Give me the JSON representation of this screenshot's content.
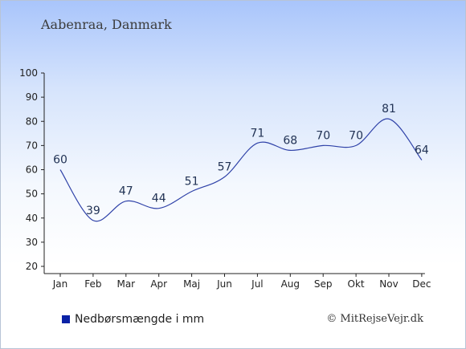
{
  "header": {
    "title": "Aabenraa, Danmark"
  },
  "legend": {
    "label": "Nedbørsmængde i mm",
    "color": "#0a22a6"
  },
  "credit": {
    "symbol": "©",
    "text": "MitRejseVejr.dk"
  },
  "colors": {
    "line": "#2f42a8",
    "axis": "#222222"
  },
  "chart_data": {
    "type": "line",
    "categories": [
      "Jan",
      "Feb",
      "Mar",
      "Apr",
      "Maj",
      "Jun",
      "Jul",
      "Aug",
      "Sep",
      "Okt",
      "Nov",
      "Dec"
    ],
    "series": [
      {
        "values": [
          60,
          39,
          47,
          44,
          51,
          57,
          71,
          68,
          70,
          70,
          81,
          64
        ]
      }
    ],
    "yticks": [
      20,
      30,
      40,
      50,
      60,
      70,
      80,
      90,
      100
    ],
    "ylim": [
      17,
      100
    ],
    "grid": false,
    "legend_position": "bottom-left"
  }
}
